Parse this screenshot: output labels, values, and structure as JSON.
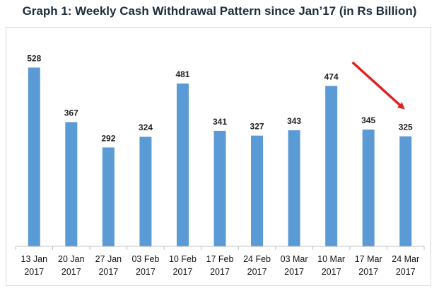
{
  "chart_data": {
    "type": "bar",
    "title": "Graph 1: Weekly Cash Withdrawal Pattern since Jan’17 (in Rs Billion)",
    "categories": [
      [
        "13 Jan",
        "2017"
      ],
      [
        "20 Jan",
        "2017"
      ],
      [
        "27 Jan",
        "2017"
      ],
      [
        "03 Feb",
        "2017"
      ],
      [
        "10 Feb",
        "2017"
      ],
      [
        "17 Feb",
        "2017"
      ],
      [
        "24 Feb",
        "2017"
      ],
      [
        "03 Mar",
        "2017"
      ],
      [
        "10 Mar",
        "2017"
      ],
      [
        "17 Mar",
        "2017"
      ],
      [
        "24 Mar",
        "2017"
      ]
    ],
    "values": [
      528,
      367,
      292,
      324,
      481,
      341,
      327,
      343,
      474,
      345,
      325
    ],
    "ylim": [
      0,
      600
    ],
    "grid": false,
    "legend": "none",
    "bar_color": "#5b9bd5",
    "annotation": {
      "type": "arrow",
      "from_category": 8,
      "to_category": 10,
      "color": "#e02020"
    }
  }
}
